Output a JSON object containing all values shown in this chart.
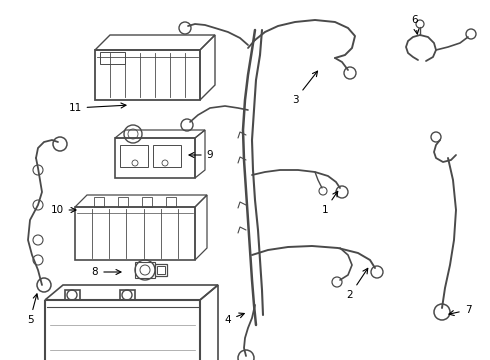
{
  "bg_color": "#ffffff",
  "line_color": "#4a4a4a",
  "label_color": "#000000",
  "fig_width": 4.9,
  "fig_height": 3.6,
  "dpi": 100,
  "lw_main": 1.5,
  "lw_cable": 1.2,
  "lw_thin": 0.7,
  "lw_thick": 2.0
}
